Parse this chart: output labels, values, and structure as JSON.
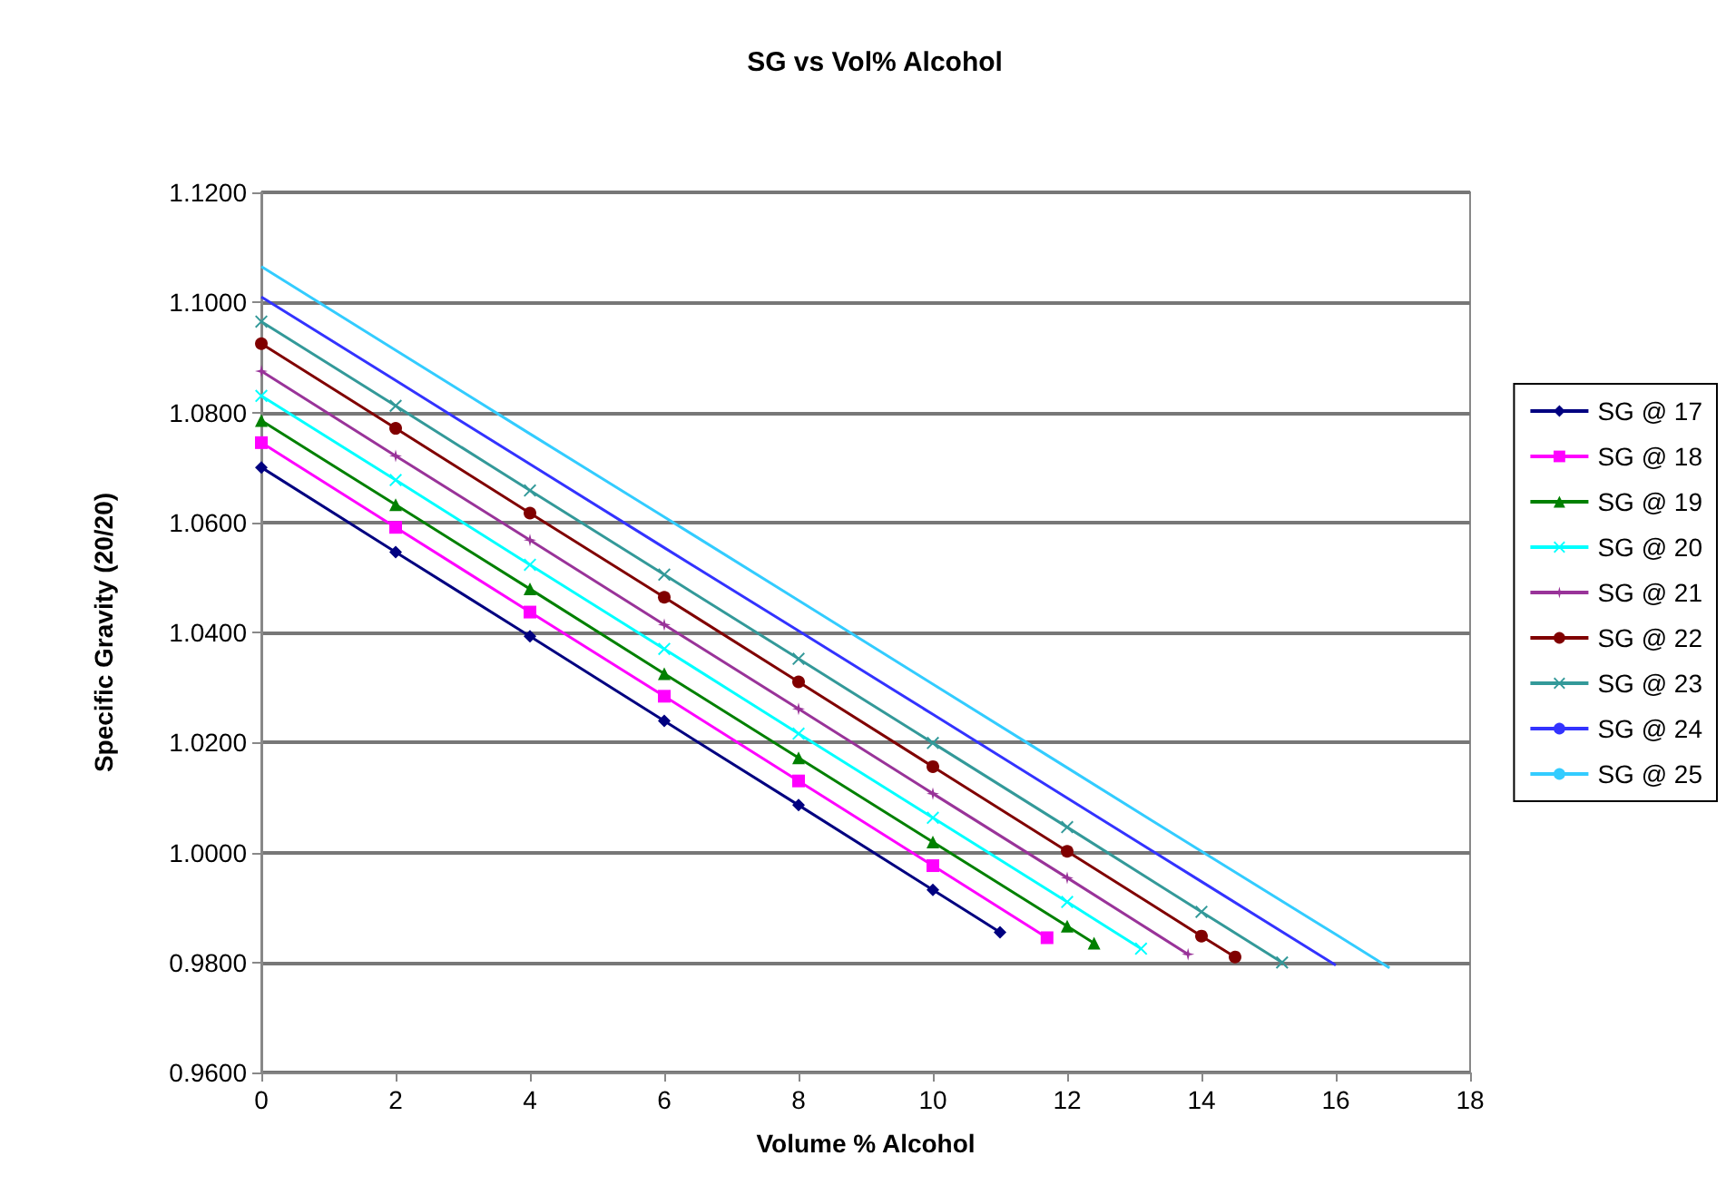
{
  "chart_data": {
    "type": "line",
    "title": "SG vs Vol% Alcohol",
    "xlabel": "Volume % Alcohol",
    "ylabel": "Specific Gravity (20/20)",
    "xlim": [
      0,
      18
    ],
    "xticks": [
      0,
      2,
      4,
      6,
      8,
      10,
      12,
      14,
      16,
      18
    ],
    "ylim": [
      0.96,
      1.12
    ],
    "yticks": [
      {
        "value": 0.96,
        "label": "0.9600"
      },
      {
        "value": 0.98,
        "label": "0.9800"
      },
      {
        "value": 1.0,
        "label": "1.0000"
      },
      {
        "value": 1.02,
        "label": "1.0200"
      },
      {
        "value": 1.04,
        "label": "1.0400"
      },
      {
        "value": 1.06,
        "label": "1.0600"
      },
      {
        "value": 1.08,
        "label": "1.0800"
      },
      {
        "value": 1.1,
        "label": "1.1000"
      },
      {
        "value": 1.12,
        "label": "1.1200"
      }
    ],
    "grid": "y",
    "legend": "right",
    "line_style": "solid",
    "series": [
      {
        "name": "SG @ 17",
        "color": "#000080",
        "marker": "diamond",
        "x": [
          0,
          2,
          4,
          6,
          8,
          10,
          11
        ],
        "values": [
          1.07,
          1.0546,
          1.0393,
          1.0239,
          1.0086,
          0.9932,
          0.9855
        ]
      },
      {
        "name": "SG @ 18",
        "color": "#ff00ff",
        "marker": "square",
        "x": [
          0,
          2,
          4,
          6,
          8,
          10,
          11.7
        ],
        "values": [
          1.0745,
          1.0591,
          1.0437,
          1.0284,
          1.013,
          0.9976,
          0.9845
        ]
      },
      {
        "name": "SG @ 19",
        "color": "#008000",
        "marker": "triangle",
        "x": [
          0,
          2,
          4,
          6,
          8,
          10,
          12,
          12.4
        ],
        "values": [
          1.0785,
          1.0632,
          1.0479,
          1.0325,
          1.0172,
          1.0019,
          0.9866,
          0.9835
        ]
      },
      {
        "name": "SG @ 20",
        "color": "#00ffff",
        "marker": "cross",
        "x": [
          0,
          2,
          4,
          6,
          8,
          10,
          12,
          13.1
        ],
        "values": [
          1.083,
          1.0677,
          1.0523,
          1.037,
          1.0216,
          1.0063,
          0.991,
          0.9825
        ]
      },
      {
        "name": "SG @ 21",
        "color": "#993399",
        "marker": "star",
        "x": [
          0,
          2,
          4,
          6,
          8,
          10,
          12,
          13.8
        ],
        "values": [
          1.0875,
          1.0721,
          1.0568,
          1.0414,
          1.0261,
          1.0107,
          0.9954,
          0.9815
        ]
      },
      {
        "name": "SG @ 22",
        "color": "#800000",
        "marker": "circle",
        "x": [
          0,
          2,
          4,
          6,
          8,
          10,
          12,
          14,
          14.5
        ],
        "values": [
          1.0925,
          1.0771,
          1.0617,
          1.0464,
          1.031,
          1.0156,
          1.0002,
          0.9848,
          0.981
        ]
      },
      {
        "name": "SG @ 23",
        "color": "#339999",
        "marker": "cross",
        "x": [
          0,
          2,
          4,
          6,
          8,
          10,
          12,
          14,
          15.2
        ],
        "values": [
          1.0965,
          1.0812,
          1.0658,
          1.0505,
          1.0352,
          1.0199,
          1.0046,
          0.9892,
          0.98
        ]
      },
      {
        "name": "SG @ 24",
        "color": "#3333ff",
        "marker": "none",
        "x": [
          0,
          2,
          4,
          6,
          8,
          10,
          12,
          14,
          16
        ],
        "values": [
          1.101,
          1.0858,
          1.0706,
          1.0554,
          1.0403,
          1.0251,
          1.0099,
          0.9947,
          0.9795
        ]
      },
      {
        "name": "SG @ 25",
        "color": "#33ccff",
        "marker": "none",
        "x": [
          0,
          2,
          4,
          6,
          8,
          10,
          12,
          14,
          16,
          16.8
        ],
        "values": [
          1.1065,
          1.0913,
          1.0761,
          1.061,
          1.0458,
          1.0306,
          1.0154,
          1.0002,
          0.9851,
          0.979
        ]
      }
    ]
  }
}
